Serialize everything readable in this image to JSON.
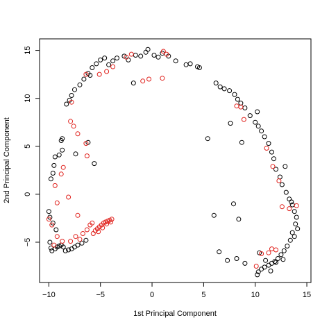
{
  "chart_data": {
    "type": "scatter",
    "title": "",
    "xlabel": "1st Principal Component",
    "ylabel": "2nd Principal Component",
    "xlim": [
      -10.9,
      15.4
    ],
    "ylim": [
      -9.2,
      16.2
    ],
    "x_ticks": [
      -10,
      -5,
      0,
      5,
      10,
      15
    ],
    "y_ticks": [
      -5,
      0,
      5,
      10,
      15
    ],
    "x_tick_labels": [
      "−10",
      "−5",
      "0",
      "5",
      "10",
      "15"
    ],
    "y_tick_labels": [
      "−5",
      "0",
      "5",
      "10",
      "15"
    ],
    "marker": "open-circle",
    "grid": false,
    "legend": "none",
    "series": [
      {
        "color": "#000000",
        "points": [
          [
            -9.9,
            -5.0
          ],
          [
            -9.8,
            -5.6
          ],
          [
            -9.7,
            -5.9
          ],
          [
            -9.4,
            -5.7
          ],
          [
            -9.2,
            -5.5
          ],
          [
            -9.0,
            -5.4
          ],
          [
            -8.8,
            -5.3
          ],
          [
            -8.6,
            -5.5
          ],
          [
            -8.4,
            -5.9
          ],
          [
            -8.1,
            -5.8
          ],
          [
            -7.8,
            -5.7
          ],
          [
            -7.5,
            -5.5
          ],
          [
            -7.2,
            -5.3
          ],
          [
            -6.8,
            -5.1
          ],
          [
            -6.4,
            -4.8
          ],
          [
            -9.9,
            -2.4
          ],
          [
            -9.6,
            -3.0
          ],
          [
            -9.3,
            -3.7
          ],
          [
            -10.0,
            -1.8
          ],
          [
            -9.8,
            1.6
          ],
          [
            -9.6,
            2.2
          ],
          [
            -9.5,
            3.0
          ],
          [
            -9.4,
            3.9
          ],
          [
            -9.0,
            4.1
          ],
          [
            -8.7,
            4.6
          ],
          [
            -8.8,
            5.6
          ],
          [
            -8.7,
            5.8
          ],
          [
            -7.4,
            4.2
          ],
          [
            -6.2,
            5.4
          ],
          [
            -5.6,
            3.2
          ],
          [
            -8.3,
            9.4
          ],
          [
            -8.0,
            9.8
          ],
          [
            -7.8,
            10.3
          ],
          [
            -7.5,
            10.9
          ],
          [
            -7.0,
            11.4
          ],
          [
            -6.6,
            12.0
          ],
          [
            -6.2,
            12.6
          ],
          [
            -6.0,
            12.4
          ],
          [
            -5.8,
            13.2
          ],
          [
            -5.4,
            13.6
          ],
          [
            -5.0,
            14.0
          ],
          [
            -4.6,
            14.2
          ],
          [
            -4.2,
            13.5
          ],
          [
            -3.8,
            13.9
          ],
          [
            -3.4,
            14.2
          ],
          [
            -2.7,
            14.4
          ],
          [
            -2.3,
            14.0
          ],
          [
            -1.6,
            14.5
          ],
          [
            -1.1,
            14.4
          ],
          [
            -0.6,
            14.8
          ],
          [
            -0.4,
            15.1
          ],
          [
            0.2,
            14.5
          ],
          [
            0.6,
            14.3
          ],
          [
            1.0,
            14.7
          ],
          [
            1.6,
            14.4
          ],
          [
            2.3,
            13.9
          ],
          [
            3.3,
            13.5
          ],
          [
            3.7,
            13.6
          ],
          [
            4.4,
            13.3
          ],
          [
            4.6,
            13.2
          ],
          [
            -1.8,
            11.6
          ],
          [
            5.4,
            5.8
          ],
          [
            6.2,
            11.6
          ],
          [
            6.6,
            11.2
          ],
          [
            7.0,
            11.0
          ],
          [
            7.5,
            10.8
          ],
          [
            8.0,
            10.4
          ],
          [
            8.3,
            9.9
          ],
          [
            8.6,
            9.5
          ],
          [
            9.0,
            9.0
          ],
          [
            9.5,
            8.2
          ],
          [
            10.0,
            7.5
          ],
          [
            10.3,
            7.1
          ],
          [
            10.6,
            6.6
          ],
          [
            10.9,
            6.0
          ],
          [
            11.3,
            5.3
          ],
          [
            11.6,
            4.4
          ],
          [
            11.8,
            3.7
          ],
          [
            12.0,
            2.6
          ],
          [
            12.4,
            1.8
          ],
          [
            12.6,
            1.0
          ],
          [
            13.0,
            0.2
          ],
          [
            13.3,
            -0.5
          ],
          [
            13.6,
            -1.1
          ],
          [
            13.8,
            -1.8
          ],
          [
            14.0,
            -2.4
          ],
          [
            13.9,
            -3.1
          ],
          [
            13.6,
            -4.0
          ],
          [
            13.4,
            -4.8
          ],
          [
            13.1,
            -5.4
          ],
          [
            12.8,
            -5.9
          ],
          [
            12.5,
            -6.3
          ],
          [
            12.2,
            -6.7
          ],
          [
            11.9,
            -7.0
          ],
          [
            11.6,
            -7.2
          ],
          [
            11.3,
            -7.4
          ],
          [
            10.9,
            -7.6
          ],
          [
            10.6,
            -7.8
          ],
          [
            10.3,
            -8.1
          ],
          [
            10.2,
            -8.4
          ],
          [
            10.4,
            -6.1
          ],
          [
            11.0,
            -6.9
          ],
          [
            12.0,
            -7.1
          ],
          [
            9.0,
            -7.2
          ],
          [
            8.2,
            -6.7
          ],
          [
            7.9,
            -1.0
          ],
          [
            8.4,
            -2.6
          ],
          [
            6.5,
            -6.0
          ],
          [
            7.3,
            -6.9
          ],
          [
            6.0,
            -2.2
          ],
          [
            7.6,
            7.4
          ],
          [
            8.7,
            5.4
          ],
          [
            10.2,
            8.6
          ],
          [
            12.9,
            2.9
          ],
          [
            13.5,
            -0.8
          ],
          [
            14.1,
            -3.6
          ],
          [
            13.8,
            -4.4
          ],
          [
            12.7,
            -6.8
          ],
          [
            11.5,
            -8.0
          ]
        ]
      },
      {
        "color": "#e0201b",
        "points": [
          [
            -10.0,
            -2.6
          ],
          [
            -9.7,
            -3.2
          ],
          [
            -9.5,
            -5.3
          ],
          [
            -9.2,
            -4.4
          ],
          [
            -8.7,
            -4.9
          ],
          [
            -7.9,
            -4.9
          ],
          [
            -7.4,
            -4.4
          ],
          [
            -7.0,
            -4.7
          ],
          [
            -6.7,
            -4.1
          ],
          [
            -6.3,
            -3.7
          ],
          [
            -6.0,
            -3.2
          ],
          [
            -5.7,
            -4.1
          ],
          [
            -5.5,
            -3.8
          ],
          [
            -5.3,
            -3.6
          ],
          [
            -5.1,
            -3.4
          ],
          [
            -4.9,
            -3.2
          ],
          [
            -4.7,
            -3.0
          ],
          [
            -4.5,
            -2.9
          ],
          [
            -4.3,
            -2.8
          ],
          [
            -4.1,
            -2.7
          ],
          [
            -3.9,
            -2.6
          ],
          [
            -5.2,
            -3.9
          ],
          [
            -4.8,
            -3.5
          ],
          [
            -4.4,
            -3.1
          ],
          [
            -4.0,
            -2.9
          ],
          [
            -5.8,
            -3.0
          ],
          [
            -9.4,
            0.9
          ],
          [
            -8.8,
            2.1
          ],
          [
            -8.6,
            2.8
          ],
          [
            -7.9,
            7.6
          ],
          [
            -7.6,
            7.1
          ],
          [
            -7.2,
            6.3
          ],
          [
            -6.4,
            5.3
          ],
          [
            -6.3,
            4.0
          ],
          [
            -8.1,
            -0.3
          ],
          [
            -7.2,
            -2.2
          ],
          [
            -9.2,
            -0.9
          ],
          [
            -7.8,
            9.6
          ],
          [
            -6.4,
            12.5
          ],
          [
            -5.1,
            12.5
          ],
          [
            -4.4,
            12.8
          ],
          [
            -3.8,
            13.3
          ],
          [
            -2.5,
            14.3
          ],
          [
            -2.0,
            14.6
          ],
          [
            -0.9,
            11.8
          ],
          [
            -0.3,
            12.0
          ],
          [
            1.0,
            12.1
          ],
          [
            1.1,
            14.9
          ],
          [
            1.4,
            14.6
          ],
          [
            8.2,
            9.2
          ],
          [
            8.6,
            9.1
          ],
          [
            8.9,
            7.8
          ],
          [
            11.1,
            4.8
          ],
          [
            11.7,
            2.9
          ],
          [
            12.3,
            1.4
          ],
          [
            12.6,
            -1.3
          ],
          [
            13.3,
            -1.5
          ],
          [
            14.0,
            -1.2
          ],
          [
            12.0,
            -5.8
          ],
          [
            11.3,
            -6.1
          ],
          [
            11.6,
            -5.7
          ],
          [
            10.6,
            -6.2
          ],
          [
            10.1,
            -7.5
          ]
        ]
      }
    ]
  }
}
